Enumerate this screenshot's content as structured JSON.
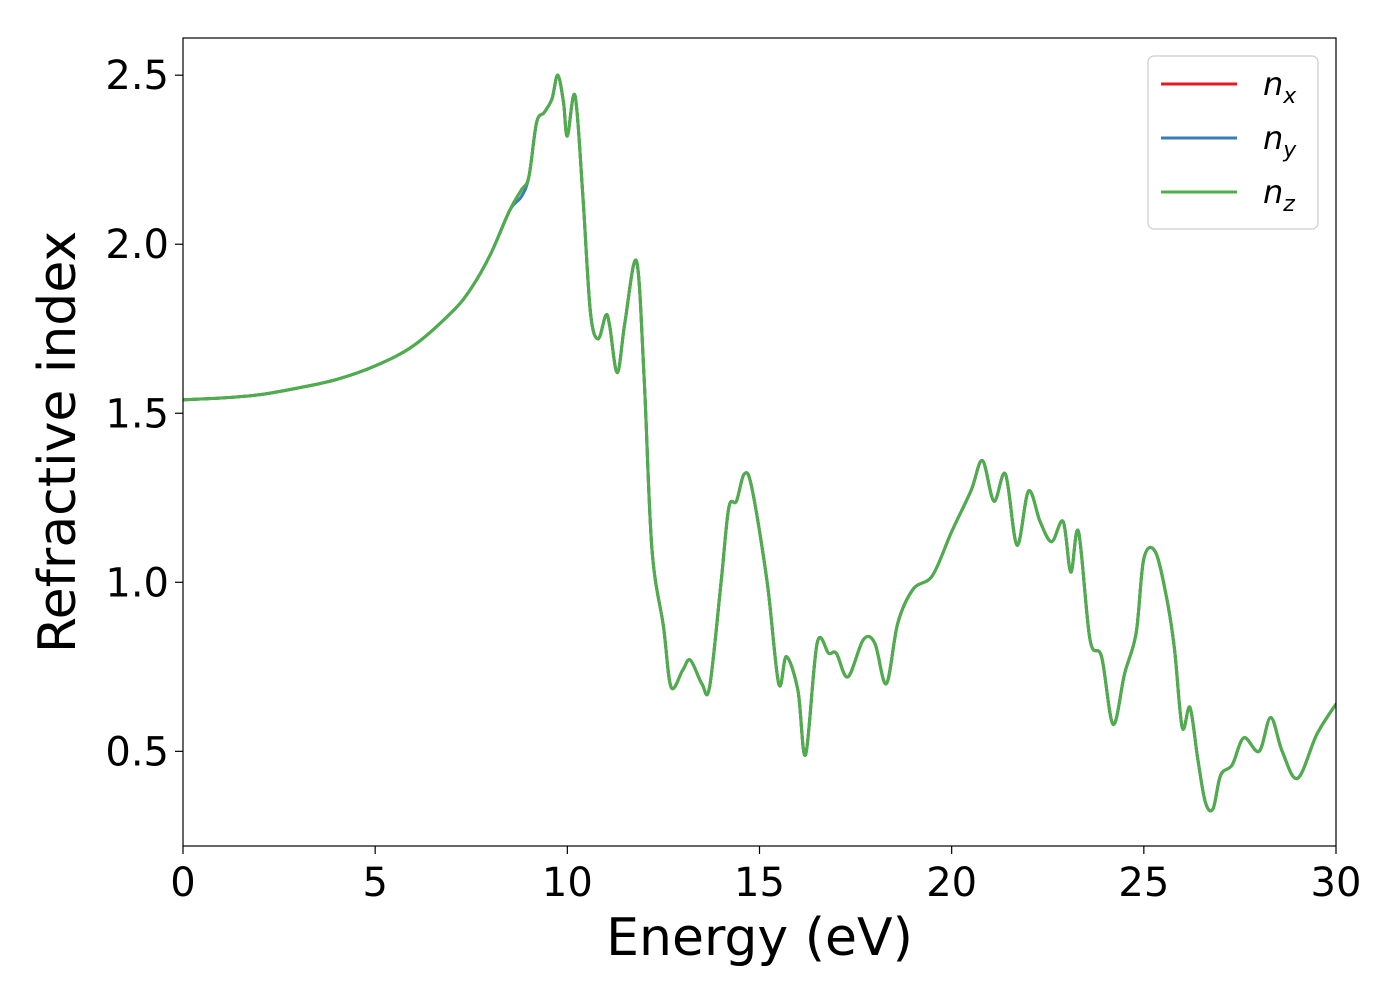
{
  "chart_data": {
    "type": "line",
    "xlabel": "Energy (eV)",
    "ylabel": "Refractive index",
    "xlim": [
      0,
      30
    ],
    "ylim": [
      0.22,
      2.61
    ],
    "xticks": [
      0,
      5,
      10,
      15,
      20,
      25,
      30
    ],
    "xtick_labels": [
      "0",
      "5",
      "10",
      "15",
      "20",
      "25",
      "30"
    ],
    "yticks": [
      0.5,
      1.0,
      1.5,
      2.0,
      2.5
    ],
    "ytick_labels": [
      "0.5",
      "1.0",
      "1.5",
      "2.0",
      "2.5"
    ],
    "grid": false,
    "legend_position": "top-right",
    "series": [
      {
        "name": "n",
        "sub": "x",
        "color": "#e41a1c",
        "x": [
          0,
          1,
          2,
          3,
          4,
          5,
          6,
          7,
          7.5,
          8,
          8.5,
          8.8,
          9.0,
          9.2,
          9.4,
          9.6,
          9.75,
          9.9,
          10.0,
          10.2,
          10.4,
          10.6,
          10.8,
          11.0,
          11.1,
          11.3,
          11.5,
          11.8,
          12.0,
          12.2,
          12.5,
          12.7,
          13.0,
          13.2,
          13.5,
          13.7,
          14.0,
          14.2,
          14.4,
          14.6,
          14.8,
          15.2,
          15.5,
          15.7,
          16.0,
          16.2,
          16.5,
          16.8,
          17.0,
          17.3,
          17.7,
          18.0,
          18.3,
          18.6,
          19.0,
          19.5,
          20.0,
          20.5,
          20.8,
          21.1,
          21.4,
          21.7,
          22.0,
          22.3,
          22.6,
          22.9,
          23.1,
          23.3,
          23.6,
          23.9,
          24.2,
          24.5,
          24.8,
          25.0,
          25.3,
          25.6,
          25.8,
          26.0,
          26.2,
          26.4,
          26.6,
          26.8,
          27.0,
          27.3,
          27.6,
          28.0,
          28.3,
          28.6,
          29.0,
          29.5,
          30.0
        ],
        "y": [
          1.54,
          1.545,
          1.555,
          1.575,
          1.6,
          1.64,
          1.7,
          1.8,
          1.87,
          1.97,
          2.1,
          2.16,
          2.2,
          2.36,
          2.39,
          2.43,
          2.5,
          2.42,
          2.32,
          2.44,
          2.15,
          1.8,
          1.72,
          1.79,
          1.76,
          1.62,
          1.77,
          1.95,
          1.6,
          1.1,
          0.87,
          0.69,
          0.74,
          0.77,
          0.7,
          0.69,
          1.0,
          1.22,
          1.24,
          1.32,
          1.28,
          1.0,
          0.7,
          0.78,
          0.68,
          0.49,
          0.82,
          0.79,
          0.79,
          0.72,
          0.83,
          0.82,
          0.7,
          0.88,
          0.98,
          1.02,
          1.15,
          1.27,
          1.36,
          1.24,
          1.32,
          1.11,
          1.27,
          1.18,
          1.12,
          1.18,
          1.03,
          1.15,
          0.83,
          0.78,
          0.58,
          0.73,
          0.85,
          1.07,
          1.09,
          0.95,
          0.8,
          0.57,
          0.63,
          0.48,
          0.35,
          0.33,
          0.43,
          0.46,
          0.54,
          0.5,
          0.6,
          0.5,
          0.42,
          0.55,
          0.64
        ]
      },
      {
        "name": "n",
        "sub": "y",
        "color": "#377eb8",
        "x": [
          0,
          1,
          2,
          3,
          4,
          5,
          6,
          7,
          7.5,
          8,
          8.5,
          8.8,
          9.0,
          9.2,
          9.4,
          9.6,
          9.75,
          9.9,
          10.0,
          10.2,
          10.4,
          10.6,
          10.8,
          11.0,
          11.1,
          11.3,
          11.5,
          11.8,
          12.0,
          12.2,
          12.5,
          12.7,
          13.0,
          13.2,
          13.5,
          13.7,
          14.0,
          14.2,
          14.4,
          14.6,
          14.8,
          15.2,
          15.5,
          15.7,
          16.0,
          16.2,
          16.5,
          16.8,
          17.0,
          17.3,
          17.7,
          18.0,
          18.3,
          18.6,
          19.0,
          19.5,
          20.0,
          20.5,
          20.8,
          21.1,
          21.4,
          21.7,
          22.0,
          22.3,
          22.6,
          22.9,
          23.1,
          23.3,
          23.6,
          23.9,
          24.2,
          24.5,
          24.8,
          25.0,
          25.3,
          25.6,
          25.8,
          26.0,
          26.2,
          26.4,
          26.6,
          26.8,
          27.0,
          27.3,
          27.6,
          28.0,
          28.3,
          28.6,
          29.0,
          29.5,
          30.0
        ],
        "y": [
          1.54,
          1.545,
          1.555,
          1.575,
          1.6,
          1.64,
          1.7,
          1.8,
          1.87,
          1.97,
          2.1,
          2.14,
          2.2,
          2.36,
          2.39,
          2.43,
          2.5,
          2.42,
          2.32,
          2.44,
          2.15,
          1.8,
          1.72,
          1.79,
          1.76,
          1.62,
          1.77,
          1.95,
          1.6,
          1.1,
          0.87,
          0.69,
          0.74,
          0.77,
          0.7,
          0.69,
          1.0,
          1.22,
          1.24,
          1.32,
          1.28,
          1.0,
          0.7,
          0.78,
          0.68,
          0.49,
          0.82,
          0.79,
          0.79,
          0.72,
          0.83,
          0.82,
          0.7,
          0.88,
          0.98,
          1.02,
          1.15,
          1.27,
          1.36,
          1.24,
          1.32,
          1.11,
          1.27,
          1.18,
          1.12,
          1.18,
          1.03,
          1.15,
          0.83,
          0.78,
          0.58,
          0.73,
          0.85,
          1.07,
          1.09,
          0.95,
          0.8,
          0.57,
          0.63,
          0.48,
          0.35,
          0.33,
          0.43,
          0.46,
          0.54,
          0.5,
          0.6,
          0.5,
          0.42,
          0.55,
          0.64
        ]
      },
      {
        "name": "n",
        "sub": "z",
        "color": "#4daf4a",
        "x": [
          0,
          1,
          2,
          3,
          4,
          5,
          6,
          7,
          7.5,
          8,
          8.5,
          8.8,
          9.0,
          9.2,
          9.4,
          9.6,
          9.75,
          9.9,
          10.0,
          10.2,
          10.4,
          10.6,
          10.8,
          11.0,
          11.1,
          11.3,
          11.5,
          11.8,
          12.0,
          12.2,
          12.5,
          12.7,
          13.0,
          13.2,
          13.5,
          13.7,
          14.0,
          14.2,
          14.4,
          14.6,
          14.8,
          15.2,
          15.5,
          15.7,
          16.0,
          16.2,
          16.5,
          16.8,
          17.0,
          17.3,
          17.7,
          18.0,
          18.3,
          18.6,
          19.0,
          19.5,
          20.0,
          20.5,
          20.8,
          21.1,
          21.4,
          21.7,
          22.0,
          22.3,
          22.6,
          22.9,
          23.1,
          23.3,
          23.6,
          23.9,
          24.2,
          24.5,
          24.8,
          25.0,
          25.3,
          25.6,
          25.8,
          26.0,
          26.2,
          26.4,
          26.6,
          26.8,
          27.0,
          27.3,
          27.6,
          28.0,
          28.3,
          28.6,
          29.0,
          29.5,
          30.0
        ],
        "y": [
          1.54,
          1.545,
          1.555,
          1.575,
          1.6,
          1.64,
          1.7,
          1.8,
          1.87,
          1.97,
          2.1,
          2.16,
          2.2,
          2.36,
          2.39,
          2.43,
          2.5,
          2.42,
          2.32,
          2.44,
          2.15,
          1.8,
          1.72,
          1.79,
          1.76,
          1.62,
          1.77,
          1.95,
          1.6,
          1.1,
          0.87,
          0.69,
          0.74,
          0.77,
          0.7,
          0.69,
          1.0,
          1.22,
          1.24,
          1.32,
          1.28,
          1.0,
          0.7,
          0.78,
          0.68,
          0.49,
          0.82,
          0.79,
          0.79,
          0.72,
          0.83,
          0.82,
          0.7,
          0.88,
          0.98,
          1.02,
          1.15,
          1.27,
          1.36,
          1.24,
          1.32,
          1.11,
          1.27,
          1.18,
          1.12,
          1.18,
          1.03,
          1.15,
          0.83,
          0.78,
          0.58,
          0.73,
          0.85,
          1.07,
          1.09,
          0.95,
          0.8,
          0.57,
          0.63,
          0.48,
          0.35,
          0.33,
          0.43,
          0.46,
          0.54,
          0.5,
          0.6,
          0.5,
          0.42,
          0.55,
          0.64
        ]
      }
    ]
  }
}
